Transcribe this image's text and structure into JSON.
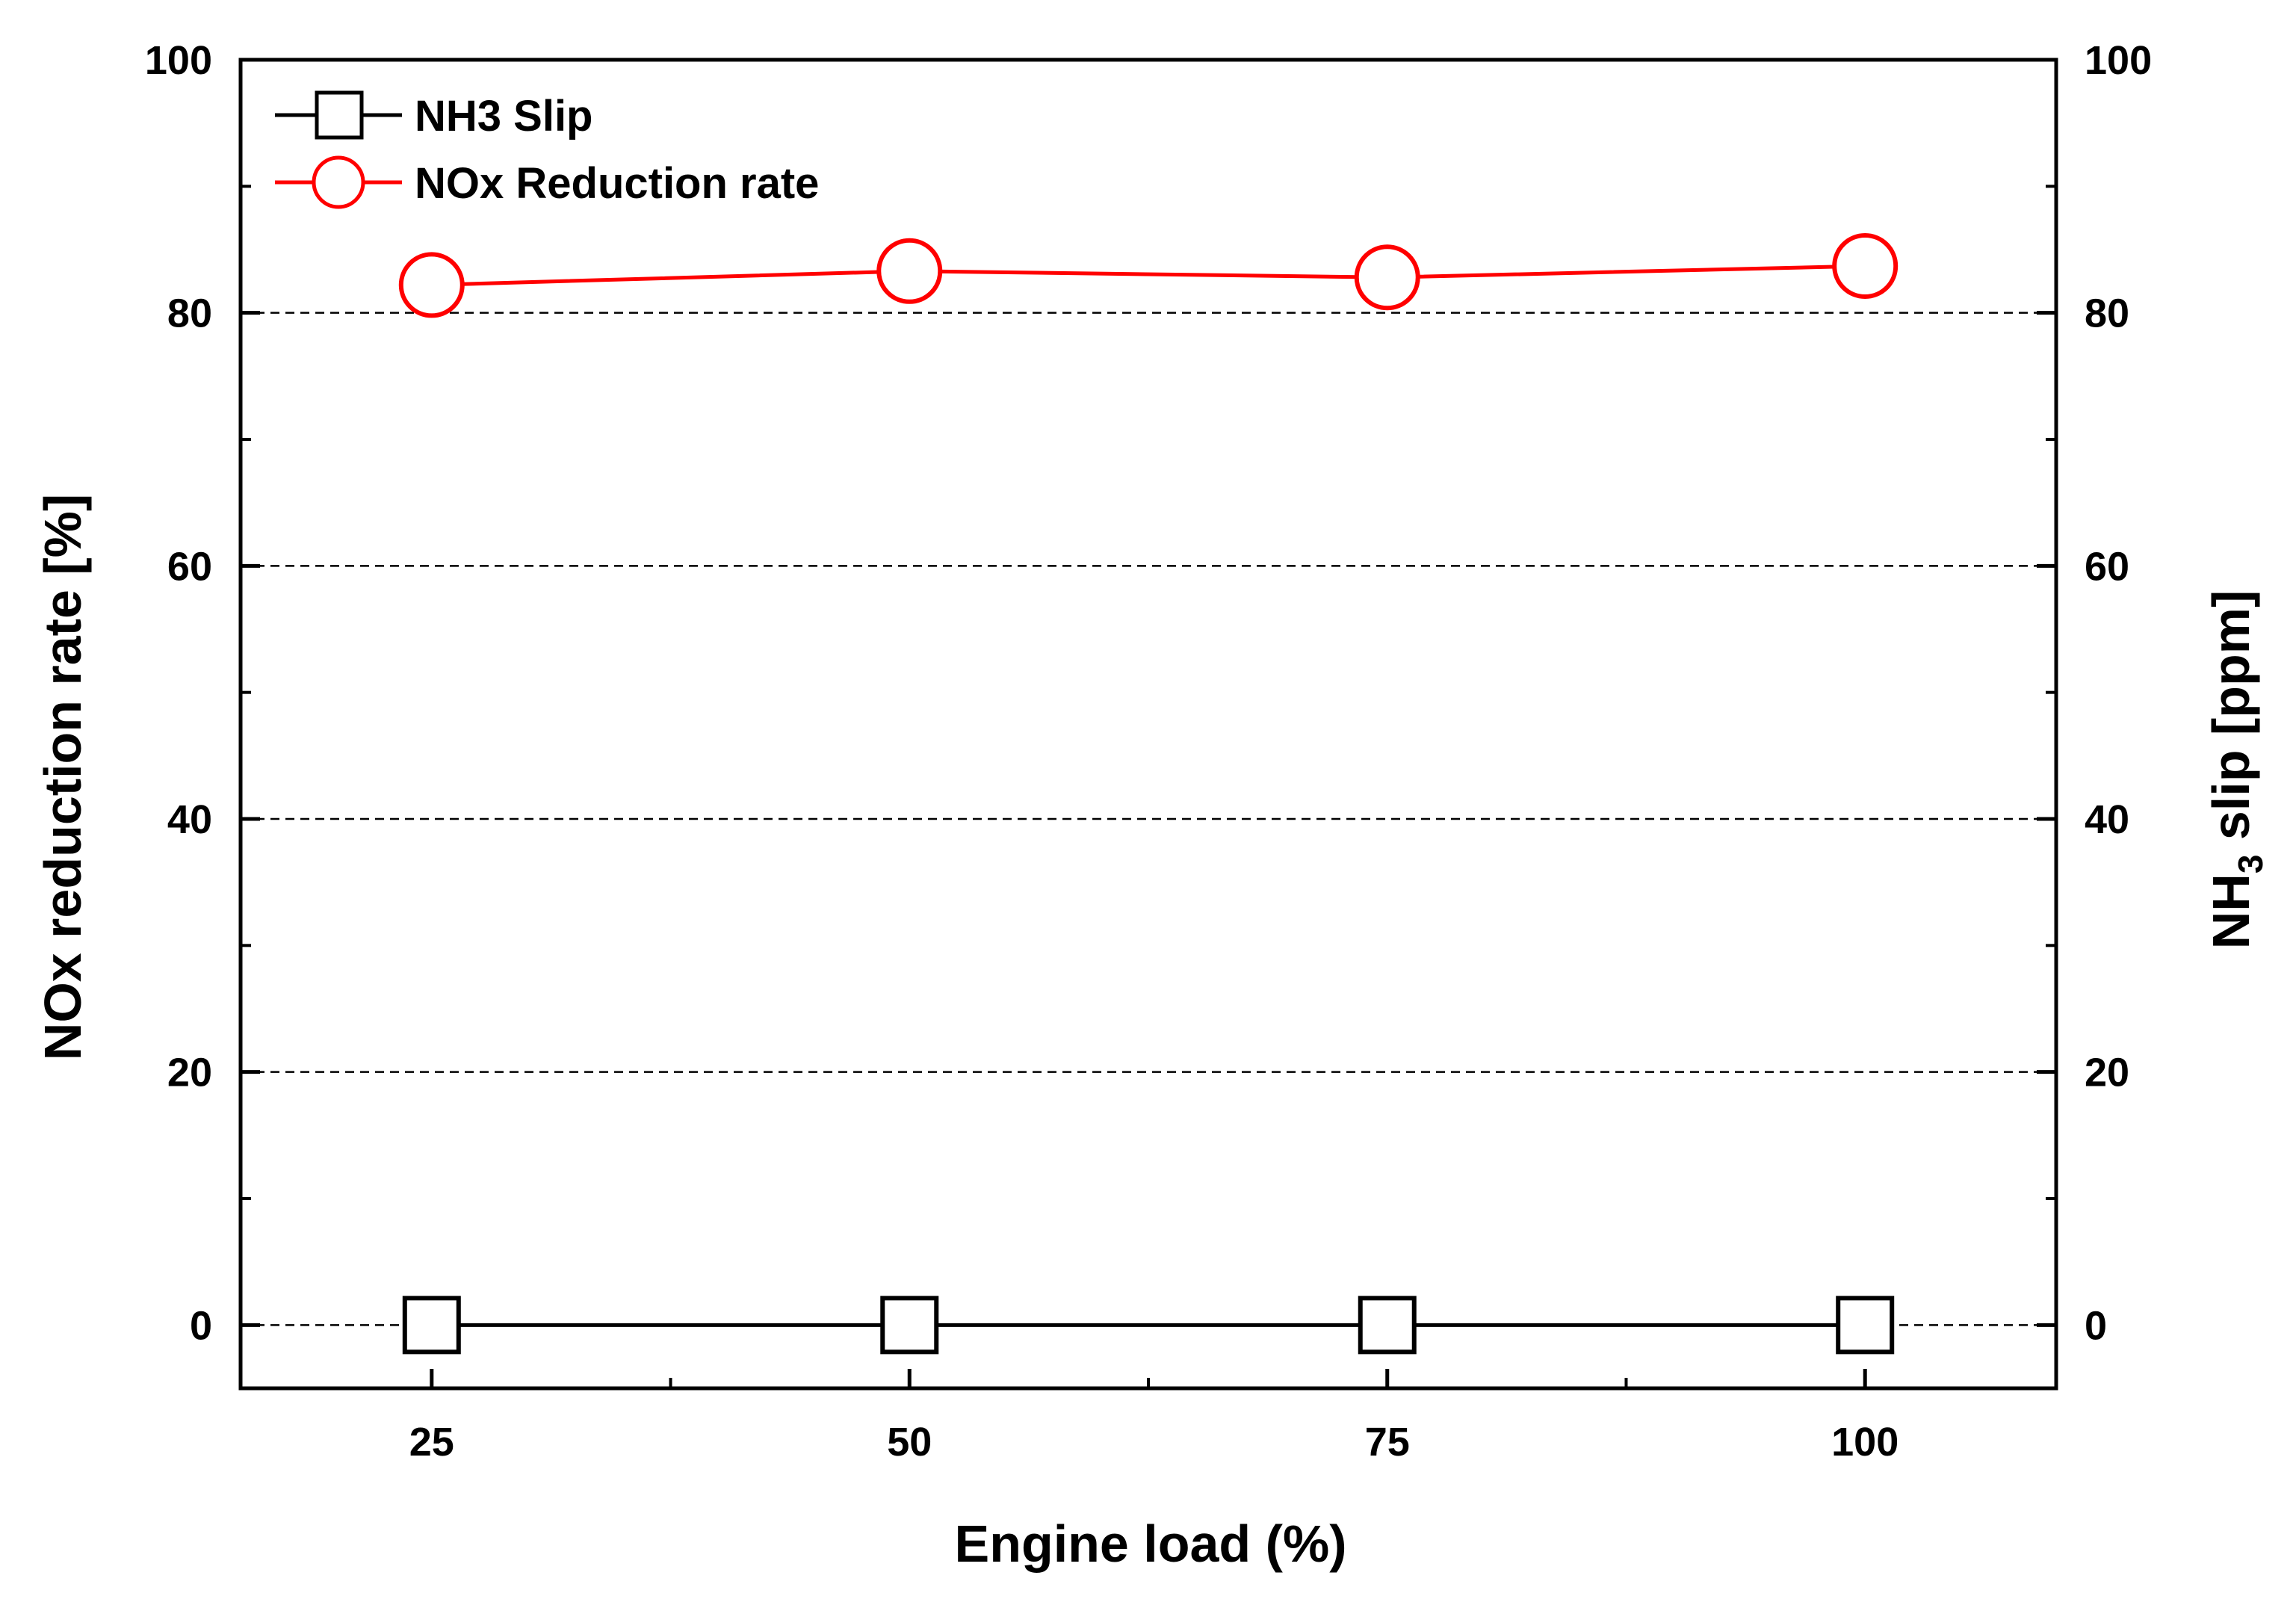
{
  "chart_data": {
    "type": "line",
    "x": [
      25,
      50,
      75,
      100
    ],
    "xlabel": "Engine load (%)",
    "ylabel": "NOx reduction rate [%]",
    "y2label": {
      "base": "NH",
      "sub": "3",
      "rest": " slip [ppm]"
    },
    "xlim": [
      15,
      110
    ],
    "ylim": [
      -5,
      100
    ],
    "y2lim": [
      -5,
      100
    ],
    "xticks": [
      25,
      50,
      75,
      100
    ],
    "yticks": [
      0,
      20,
      40,
      60,
      80,
      100
    ],
    "y2ticks": [
      0,
      20,
      40,
      60,
      80,
      100
    ],
    "grid": "horizontal dashed",
    "legend": "top-left",
    "series": [
      {
        "name": "NH3 Slip",
        "axis": "right",
        "marker": "square",
        "color": "#000000",
        "values": [
          0,
          0,
          0,
          0
        ]
      },
      {
        "name": "NOx Reduction rate",
        "axis": "left",
        "marker": "circle",
        "color": "#ff0000",
        "values": [
          82.2,
          83.3,
          82.8,
          83.7
        ]
      }
    ]
  }
}
